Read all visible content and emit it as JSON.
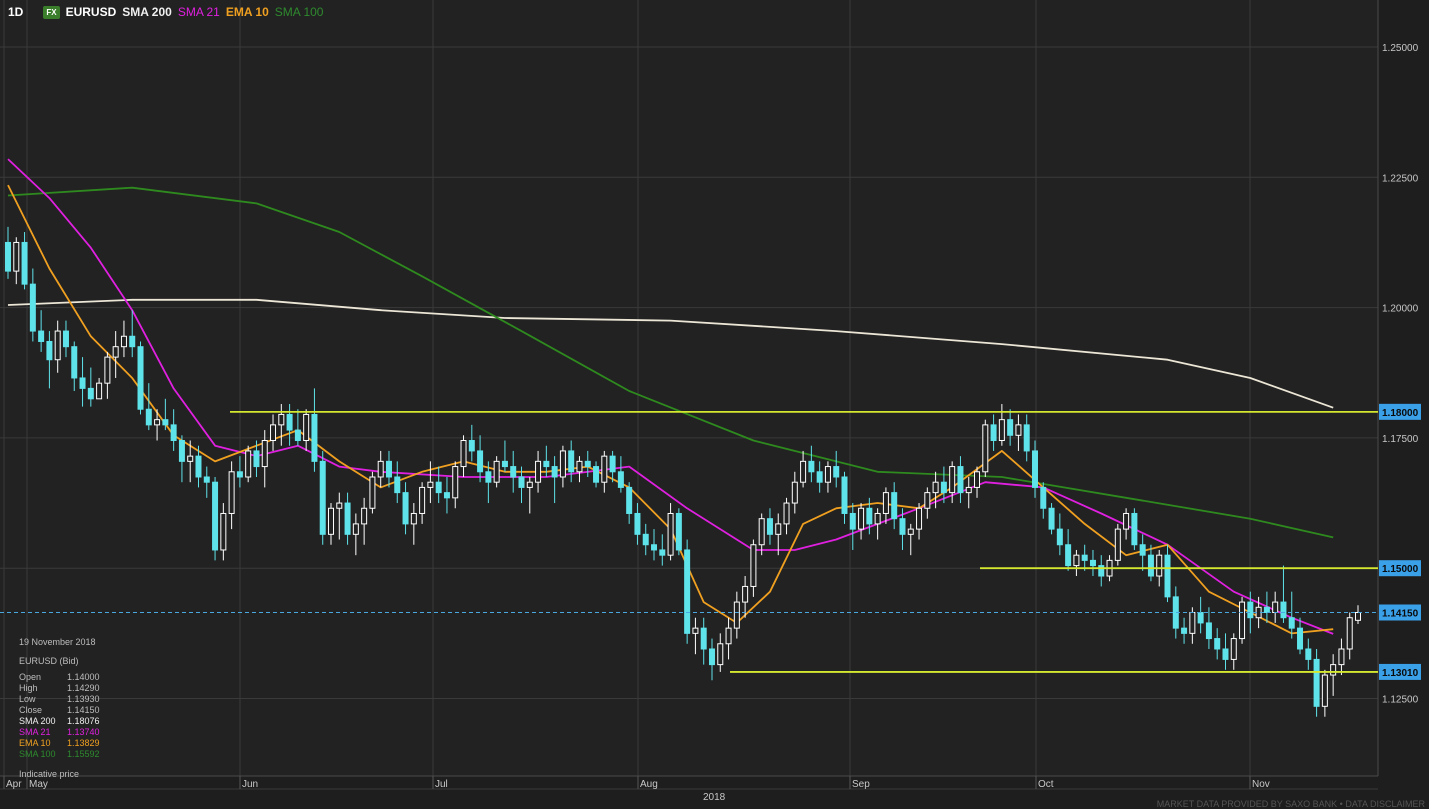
{
  "header": {
    "timeframe": "1D",
    "badge": "FX",
    "symbol": "EURUSD",
    "indicators": [
      {
        "label": "SMA 200",
        "color": "#f0f0f0"
      },
      {
        "label": "SMA 21",
        "color": "#e020e0"
      },
      {
        "label": "EMA 10",
        "color": "#f0a020"
      },
      {
        "label": "SMA 100",
        "color": "#2e8a2e"
      }
    ]
  },
  "info_panel": {
    "date": "19 November 2018",
    "instrument": "EURUSD (Bid)",
    "rows": [
      {
        "k": "Open",
        "v": "1.14000",
        "color": "#bdbdbd"
      },
      {
        "k": "High",
        "v": "1.14290",
        "color": "#bdbdbd"
      },
      {
        "k": "Low",
        "v": "1.13930",
        "color": "#bdbdbd"
      },
      {
        "k": "Close",
        "v": "1.14150",
        "color": "#bdbdbd"
      },
      {
        "k": "SMA 200",
        "v": "1.18076",
        "color": "#f0f0f0"
      },
      {
        "k": "SMA 21",
        "v": "1.13740",
        "color": "#e020e0"
      },
      {
        "k": "EMA 10",
        "v": "1.13829",
        "color": "#f0a020"
      },
      {
        "k": "SMA 100",
        "v": "1.15592",
        "color": "#2e8a2e"
      }
    ],
    "note": "Indicative price"
  },
  "footer": "MARKET DATA PROVIDED BY SAXO BANK • DATA DISCLAIMER",
  "chart_data": {
    "type": "candlestick",
    "ylim": [
      1.1125,
      1.2575
    ],
    "y_ticks": [
      "1.25000",
      "1.22500",
      "1.20000",
      "1.17500",
      "1.15000",
      "1.12500"
    ],
    "x_labels": [
      "Apr",
      "May",
      "Jun",
      "Jul",
      "Aug",
      "Sep",
      "Oct",
      "Nov"
    ],
    "year_label": "2018",
    "colors": {
      "up": "#ffffff",
      "down": "#5fe3ea",
      "grid": "#3a3a3a",
      "level": "#d4e830",
      "current": "#4aa8e0"
    },
    "levels": [
      {
        "label": "1.18000",
        "value": 1.18
      },
      {
        "label": "1.15000",
        "value": 1.15
      },
      {
        "label": "1.13010",
        "value": 1.1301
      }
    ],
    "current_price": {
      "label": "1.14150",
      "value": 1.1415
    },
    "ohlc": [
      [
        1.2125,
        1.2155,
        1.2055,
        1.207
      ],
      [
        1.207,
        1.2135,
        1.2045,
        1.2125
      ],
      [
        1.2125,
        1.2145,
        1.2035,
        1.2045
      ],
      [
        1.2045,
        1.2075,
        1.1935,
        1.1955
      ],
      [
        1.1955,
        1.1995,
        1.1915,
        1.1935
      ],
      [
        1.1935,
        1.1955,
        1.1845,
        1.19
      ],
      [
        1.19,
        1.1975,
        1.1875,
        1.1955
      ],
      [
        1.1955,
        1.1975,
        1.1905,
        1.1925
      ],
      [
        1.1925,
        1.1935,
        1.184,
        1.1865
      ],
      [
        1.1865,
        1.1905,
        1.181,
        1.1845
      ],
      [
        1.1845,
        1.1885,
        1.181,
        1.1825
      ],
      [
        1.1825,
        1.1865,
        1.1825,
        1.1855
      ],
      [
        1.1855,
        1.1915,
        1.1825,
        1.1905
      ],
      [
        1.1905,
        1.1955,
        1.1865,
        1.1925
      ],
      [
        1.1925,
        1.1975,
        1.1905,
        1.1945
      ],
      [
        1.1945,
        1.1995,
        1.1905,
        1.1925
      ],
      [
        1.1925,
        1.1935,
        1.1795,
        1.1805
      ],
      [
        1.1805,
        1.1855,
        1.1765,
        1.1775
      ],
      [
        1.1775,
        1.1805,
        1.1745,
        1.1785
      ],
      [
        1.1785,
        1.1825,
        1.1765,
        1.1775
      ],
      [
        1.1775,
        1.1805,
        1.1725,
        1.1745
      ],
      [
        1.1745,
        1.1755,
        1.1665,
        1.1705
      ],
      [
        1.1705,
        1.1745,
        1.1665,
        1.1715
      ],
      [
        1.1715,
        1.1735,
        1.1655,
        1.1675
      ],
      [
        1.1675,
        1.1695,
        1.1635,
        1.1665
      ],
      [
        1.1665,
        1.1675,
        1.1515,
        1.1535
      ],
      [
        1.1535,
        1.1625,
        1.1515,
        1.1605
      ],
      [
        1.1605,
        1.1705,
        1.1575,
        1.1685
      ],
      [
        1.1685,
        1.1715,
        1.1655,
        1.1675
      ],
      [
        1.1675,
        1.1735,
        1.1665,
        1.1725
      ],
      [
        1.1725,
        1.1745,
        1.1675,
        1.1695
      ],
      [
        1.1695,
        1.1765,
        1.1655,
        1.1745
      ],
      [
        1.1745,
        1.1795,
        1.1725,
        1.1775
      ],
      [
        1.1775,
        1.1815,
        1.1735,
        1.1795
      ],
      [
        1.1795,
        1.1815,
        1.1735,
        1.1765
      ],
      [
        1.1765,
        1.1805,
        1.1735,
        1.1745
      ],
      [
        1.1745,
        1.1805,
        1.1725,
        1.1795
      ],
      [
        1.1795,
        1.1845,
        1.1685,
        1.1705
      ],
      [
        1.1705,
        1.1725,
        1.1545,
        1.1565
      ],
      [
        1.1565,
        1.1625,
        1.1545,
        1.1615
      ],
      [
        1.1615,
        1.1645,
        1.1555,
        1.1625
      ],
      [
        1.1625,
        1.1645,
        1.1545,
        1.1565
      ],
      [
        1.1565,
        1.1605,
        1.1525,
        1.1585
      ],
      [
        1.1585,
        1.1635,
        1.1545,
        1.1615
      ],
      [
        1.1615,
        1.1685,
        1.1605,
        1.1675
      ],
      [
        1.1675,
        1.1725,
        1.1655,
        1.1705
      ],
      [
        1.1705,
        1.1725,
        1.1655,
        1.1675
      ],
      [
        1.1675,
        1.1705,
        1.1625,
        1.1645
      ],
      [
        1.1645,
        1.1665,
        1.1565,
        1.1585
      ],
      [
        1.1585,
        1.1625,
        1.1545,
        1.1605
      ],
      [
        1.1605,
        1.1665,
        1.1585,
        1.1655
      ],
      [
        1.1655,
        1.1705,
        1.1625,
        1.1665
      ],
      [
        1.1665,
        1.1695,
        1.1625,
        1.1645
      ],
      [
        1.1645,
        1.1675,
        1.1605,
        1.1635
      ],
      [
        1.1635,
        1.1705,
        1.1615,
        1.1695
      ],
      [
        1.1695,
        1.1755,
        1.1675,
        1.1745
      ],
      [
        1.1745,
        1.1775,
        1.1705,
        1.1725
      ],
      [
        1.1725,
        1.1755,
        1.1665,
        1.1685
      ],
      [
        1.1685,
        1.1705,
        1.1625,
        1.1665
      ],
      [
        1.1665,
        1.1715,
        1.1655,
        1.1705
      ],
      [
        1.1705,
        1.1745,
        1.1685,
        1.1695
      ],
      [
        1.1695,
        1.1725,
        1.1645,
        1.1675
      ],
      [
        1.1675,
        1.1695,
        1.1625,
        1.1655
      ],
      [
        1.1655,
        1.1675,
        1.1605,
        1.1665
      ],
      [
        1.1665,
        1.1725,
        1.1645,
        1.1705
      ],
      [
        1.1705,
        1.1735,
        1.1675,
        1.1695
      ],
      [
        1.1695,
        1.1715,
        1.1625,
        1.1675
      ],
      [
        1.1675,
        1.1735,
        1.1655,
        1.1725
      ],
      [
        1.1725,
        1.1745,
        1.1665,
        1.1685
      ],
      [
        1.1685,
        1.1715,
        1.1665,
        1.1705
      ],
      [
        1.1705,
        1.1725,
        1.1675,
        1.1695
      ],
      [
        1.1695,
        1.1705,
        1.1655,
        1.1665
      ],
      [
        1.1665,
        1.1725,
        1.1645,
        1.1715
      ],
      [
        1.1715,
        1.1725,
        1.1665,
        1.1685
      ],
      [
        1.1685,
        1.1715,
        1.1645,
        1.1655
      ],
      [
        1.1655,
        1.1665,
        1.1585,
        1.1605
      ],
      [
        1.1605,
        1.1625,
        1.1545,
        1.1565
      ],
      [
        1.1565,
        1.1585,
        1.1525,
        1.1545
      ],
      [
        1.1545,
        1.1575,
        1.1515,
        1.1535
      ],
      [
        1.1535,
        1.1565,
        1.1505,
        1.1525
      ],
      [
        1.1525,
        1.1625,
        1.1515,
        1.1605
      ],
      [
        1.1605,
        1.1615,
        1.1525,
        1.1535
      ],
      [
        1.1535,
        1.1555,
        1.1355,
        1.1375
      ],
      [
        1.1375,
        1.1405,
        1.1335,
        1.1385
      ],
      [
        1.1385,
        1.1405,
        1.1315,
        1.1345
      ],
      [
        1.1345,
        1.1365,
        1.1285,
        1.1315
      ],
      [
        1.1315,
        1.1375,
        1.1301,
        1.1355
      ],
      [
        1.1355,
        1.1405,
        1.1325,
        1.1385
      ],
      [
        1.1385,
        1.1455,
        1.1365,
        1.1435
      ],
      [
        1.1435,
        1.1485,
        1.1405,
        1.1465
      ],
      [
        1.1465,
        1.1555,
        1.1445,
        1.1545
      ],
      [
        1.1545,
        1.1605,
        1.1525,
        1.1595
      ],
      [
        1.1595,
        1.1615,
        1.1545,
        1.1565
      ],
      [
        1.1565,
        1.1605,
        1.1525,
        1.1585
      ],
      [
        1.1585,
        1.1635,
        1.1565,
        1.1625
      ],
      [
        1.1625,
        1.1685,
        1.1605,
        1.1665
      ],
      [
        1.1665,
        1.1725,
        1.1655,
        1.1705
      ],
      [
        1.1705,
        1.1735,
        1.1665,
        1.1685
      ],
      [
        1.1685,
        1.1705,
        1.1645,
        1.1665
      ],
      [
        1.1665,
        1.1705,
        1.1645,
        1.1695
      ],
      [
        1.1695,
        1.1725,
        1.1655,
        1.1675
      ],
      [
        1.1675,
        1.1685,
        1.1585,
        1.1605
      ],
      [
        1.1605,
        1.1625,
        1.1535,
        1.1575
      ],
      [
        1.1575,
        1.1625,
        1.1555,
        1.1615
      ],
      [
        1.1615,
        1.1635,
        1.1565,
        1.1585
      ],
      [
        1.1585,
        1.1615,
        1.1555,
        1.1605
      ],
      [
        1.1605,
        1.1655,
        1.1585,
        1.1645
      ],
      [
        1.1645,
        1.1665,
        1.1575,
        1.1595
      ],
      [
        1.1595,
        1.1615,
        1.1535,
        1.1565
      ],
      [
        1.1565,
        1.1585,
        1.1525,
        1.1575
      ],
      [
        1.1575,
        1.1625,
        1.1555,
        1.1615
      ],
      [
        1.1615,
        1.1655,
        1.1595,
        1.1645
      ],
      [
        1.1645,
        1.1685,
        1.1615,
        1.1665
      ],
      [
        1.1665,
        1.1695,
        1.1625,
        1.1645
      ],
      [
        1.1645,
        1.1705,
        1.1625,
        1.1695
      ],
      [
        1.1695,
        1.1715,
        1.1625,
        1.1645
      ],
      [
        1.1645,
        1.1675,
        1.1615,
        1.1655
      ],
      [
        1.1655,
        1.1695,
        1.1635,
        1.1685
      ],
      [
        1.1685,
        1.1785,
        1.1675,
        1.1775
      ],
      [
        1.1775,
        1.1795,
        1.1725,
        1.1745
      ],
      [
        1.1745,
        1.1815,
        1.1735,
        1.1785
      ],
      [
        1.1785,
        1.1805,
        1.1735,
        1.1755
      ],
      [
        1.1755,
        1.1795,
        1.1725,
        1.1775
      ],
      [
        1.1775,
        1.1795,
        1.1705,
        1.1725
      ],
      [
        1.1725,
        1.1745,
        1.1635,
        1.1655
      ],
      [
        1.1655,
        1.1665,
        1.1595,
        1.1615
      ],
      [
        1.1615,
        1.1625,
        1.1565,
        1.1575
      ],
      [
        1.1575,
        1.1605,
        1.1525,
        1.1545
      ],
      [
        1.1545,
        1.1575,
        1.1495,
        1.1505
      ],
      [
        1.1505,
        1.1535,
        1.1485,
        1.1525
      ],
      [
        1.1525,
        1.1545,
        1.1495,
        1.1515
      ],
      [
        1.1515,
        1.1535,
        1.1485,
        1.1505
      ],
      [
        1.1505,
        1.1525,
        1.1465,
        1.1485
      ],
      [
        1.1485,
        1.1525,
        1.1475,
        1.1515
      ],
      [
        1.1515,
        1.1585,
        1.1505,
        1.1575
      ],
      [
        1.1575,
        1.1615,
        1.1555,
        1.1605
      ],
      [
        1.1605,
        1.1615,
        1.1535,
        1.1545
      ],
      [
        1.1545,
        1.1565,
        1.1495,
        1.1525
      ],
      [
        1.1525,
        1.1545,
        1.1475,
        1.1485
      ],
      [
        1.1485,
        1.1535,
        1.1465,
        1.1525
      ],
      [
        1.1525,
        1.1545,
        1.1435,
        1.1445
      ],
      [
        1.1445,
        1.1465,
        1.1365,
        1.1385
      ],
      [
        1.1385,
        1.1405,
        1.1355,
        1.1375
      ],
      [
        1.1375,
        1.1425,
        1.1355,
        1.1415
      ],
      [
        1.1415,
        1.1445,
        1.1375,
        1.1395
      ],
      [
        1.1395,
        1.1425,
        1.1345,
        1.1365
      ],
      [
        1.1365,
        1.1385,
        1.1325,
        1.1345
      ],
      [
        1.1345,
        1.1375,
        1.1305,
        1.1325
      ],
      [
        1.1325,
        1.1375,
        1.1305,
        1.1365
      ],
      [
        1.1365,
        1.1445,
        1.1355,
        1.1435
      ],
      [
        1.1435,
        1.1455,
        1.1375,
        1.1405
      ],
      [
        1.1405,
        1.1445,
        1.1385,
        1.1425
      ],
      [
        1.1425,
        1.1455,
        1.1395,
        1.1415
      ],
      [
        1.1415,
        1.1455,
        1.1395,
        1.1435
      ],
      [
        1.1435,
        1.1505,
        1.1395,
        1.1405
      ],
      [
        1.1405,
        1.1455,
        1.1365,
        1.1385
      ],
      [
        1.1385,
        1.1405,
        1.1335,
        1.1345
      ],
      [
        1.1345,
        1.1365,
        1.1305,
        1.1325
      ],
      [
        1.1325,
        1.1345,
        1.1215,
        1.1235
      ],
      [
        1.1235,
        1.1305,
        1.1215,
        1.1295
      ],
      [
        1.1295,
        1.1335,
        1.1255,
        1.1315
      ],
      [
        1.1315,
        1.1365,
        1.1295,
        1.1345
      ],
      [
        1.1345,
        1.1415,
        1.1325,
        1.1405
      ],
      [
        1.14,
        1.1429,
        1.1393,
        1.1415
      ]
    ],
    "sma200": [
      [
        0,
        1.2005
      ],
      [
        15,
        1.2015
      ],
      [
        30,
        1.2015
      ],
      [
        45,
        1.1995
      ],
      [
        60,
        1.198
      ],
      [
        80,
        1.1975
      ],
      [
        100,
        1.1955
      ],
      [
        120,
        1.193
      ],
      [
        140,
        1.19
      ],
      [
        150,
        1.1865
      ],
      [
        160,
        1.1808
      ]
    ],
    "sma100": [
      [
        0,
        1.2215
      ],
      [
        15,
        1.223
      ],
      [
        30,
        1.22
      ],
      [
        40,
        1.2145
      ],
      [
        50,
        1.206
      ],
      [
        62,
        1.1955
      ],
      [
        75,
        1.184
      ],
      [
        90,
        1.1745
      ],
      [
        105,
        1.1685
      ],
      [
        120,
        1.1675
      ],
      [
        135,
        1.1635
      ],
      [
        150,
        1.1595
      ],
      [
        160,
        1.1559
      ]
    ],
    "sma21": [
      [
        0,
        1.2285
      ],
      [
        5,
        1.221
      ],
      [
        10,
        1.2115
      ],
      [
        15,
        1.1995
      ],
      [
        20,
        1.1845
      ],
      [
        25,
        1.1735
      ],
      [
        30,
        1.1715
      ],
      [
        35,
        1.1735
      ],
      [
        40,
        1.1695
      ],
      [
        45,
        1.1685
      ],
      [
        55,
        1.1675
      ],
      [
        65,
        1.1675
      ],
      [
        75,
        1.1695
      ],
      [
        82,
        1.1615
      ],
      [
        90,
        1.1535
      ],
      [
        95,
        1.1535
      ],
      [
        100,
        1.1555
      ],
      [
        105,
        1.1585
      ],
      [
        110,
        1.1615
      ],
      [
        118,
        1.1665
      ],
      [
        125,
        1.1655
      ],
      [
        132,
        1.1605
      ],
      [
        140,
        1.1545
      ],
      [
        148,
        1.1455
      ],
      [
        155,
        1.1405
      ],
      [
        160,
        1.1374
      ]
    ],
    "ema10": [
      [
        0,
        1.2235
      ],
      [
        5,
        1.2075
      ],
      [
        10,
        1.1945
      ],
      [
        15,
        1.1865
      ],
      [
        20,
        1.1755
      ],
      [
        25,
        1.1705
      ],
      [
        30,
        1.1735
      ],
      [
        35,
        1.1765
      ],
      [
        40,
        1.1705
      ],
      [
        45,
        1.1655
      ],
      [
        50,
        1.1685
      ],
      [
        55,
        1.1705
      ],
      [
        60,
        1.1685
      ],
      [
        65,
        1.1685
      ],
      [
        70,
        1.1695
      ],
      [
        75,
        1.1655
      ],
      [
        80,
        1.1575
      ],
      [
        84,
        1.1435
      ],
      [
        88,
        1.1395
      ],
      [
        92,
        1.1455
      ],
      [
        96,
        1.1585
      ],
      [
        100,
        1.1615
      ],
      [
        105,
        1.1625
      ],
      [
        110,
        1.1615
      ],
      [
        114,
        1.1655
      ],
      [
        120,
        1.1725
      ],
      [
        125,
        1.1655
      ],
      [
        130,
        1.1585
      ],
      [
        135,
        1.1525
      ],
      [
        140,
        1.1545
      ],
      [
        145,
        1.1455
      ],
      [
        150,
        1.1415
      ],
      [
        155,
        1.1375
      ],
      [
        160,
        1.1383
      ]
    ]
  }
}
